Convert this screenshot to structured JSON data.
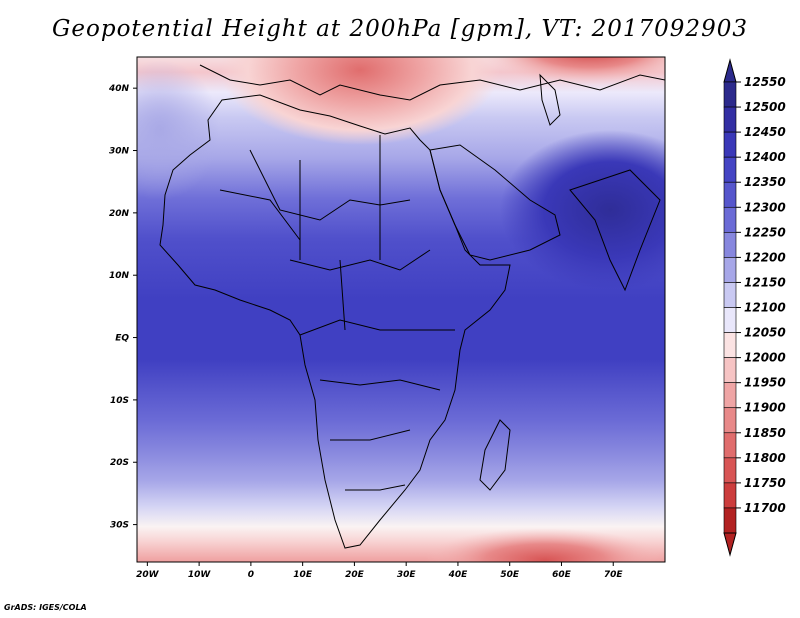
{
  "title": "Geopotential Height at 200hPa [gpm], VT: 2017092903",
  "credit": "GrADS: IGES/COLA",
  "map": {
    "lon_range": [
      -22,
      80
    ],
    "lat_range": [
      -36,
      45
    ],
    "lon_ticks": [
      {
        "value": -20,
        "label": "20W"
      },
      {
        "value": -10,
        "label": "10W"
      },
      {
        "value": 0,
        "label": "0"
      },
      {
        "value": 10,
        "label": "10E"
      },
      {
        "value": 20,
        "label": "20E"
      },
      {
        "value": 30,
        "label": "30E"
      },
      {
        "value": 40,
        "label": "40E"
      },
      {
        "value": 50,
        "label": "50E"
      },
      {
        "value": 60,
        "label": "60E"
      },
      {
        "value": 70,
        "label": "70E"
      }
    ],
    "lat_ticks": [
      {
        "value": 40,
        "label": "40N"
      },
      {
        "value": 30,
        "label": "30N"
      },
      {
        "value": 20,
        "label": "20N"
      },
      {
        "value": 10,
        "label": "10N"
      },
      {
        "value": 0,
        "label": "EQ"
      },
      {
        "value": -10,
        "label": "10S"
      },
      {
        "value": -20,
        "label": "20S"
      },
      {
        "value": -30,
        "label": "30S"
      }
    ]
  },
  "colorbar": {
    "levels": [
      {
        "label": "12550",
        "color": "#2c2a8c"
      },
      {
        "label": "12500",
        "color": "#332fa3"
      },
      {
        "label": "12450",
        "color": "#3a38b8"
      },
      {
        "label": "12400",
        "color": "#4545c4"
      },
      {
        "label": "12350",
        "color": "#5656cc"
      },
      {
        "label": "12300",
        "color": "#6b6bd6"
      },
      {
        "label": "12250",
        "color": "#8787de"
      },
      {
        "label": "12200",
        "color": "#a7a7e8"
      },
      {
        "label": "12150",
        "color": "#c9c9f2"
      },
      {
        "label": "12100",
        "color": "#e9e7fb"
      },
      {
        "label": "12050",
        "color": "#fbe3e3"
      },
      {
        "label": "12000",
        "color": "#f6c4c4"
      },
      {
        "label": "11950",
        "color": "#efa5a5"
      },
      {
        "label": "11900",
        "color": "#e88989"
      },
      {
        "label": "11850",
        "color": "#e06d6d"
      },
      {
        "label": "11800",
        "color": "#d85555"
      },
      {
        "label": "11750",
        "color": "#cc3d3d"
      },
      {
        "label": "11700",
        "color": "#b22222"
      }
    ]
  }
}
